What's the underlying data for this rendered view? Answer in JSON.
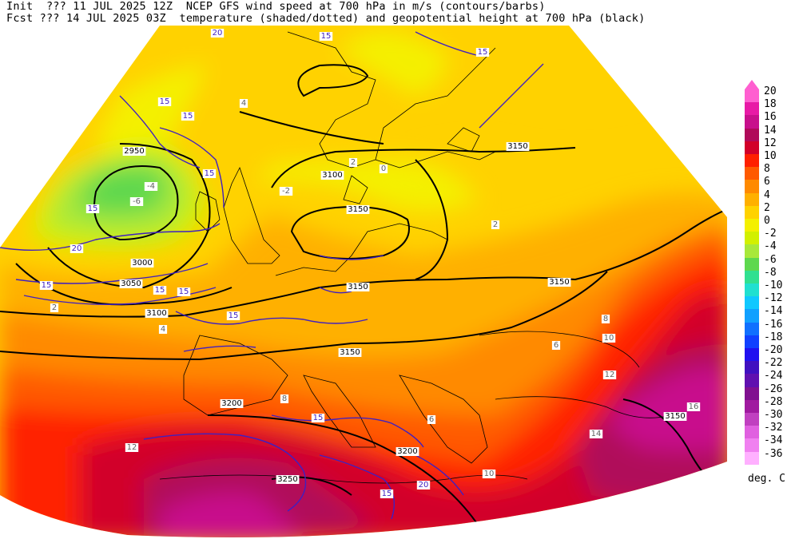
{
  "header": {
    "init_line": "Init  ??? 11 JUL 2025 12Z  NCEP GFS wind speed at 700 hPa in m/s (contours/barbs)",
    "fcst_line": "Fcst ??? 14 JUL 2025 03Z  temperature (shaded/dotted) and geopotential height at 700 hPa (black)"
  },
  "legend": {
    "units": "deg. C",
    "levels": [
      {
        "label": "20",
        "color": "#ff5fd0"
      },
      {
        "label": "18",
        "color": "#e81aa6"
      },
      {
        "label": "16",
        "color": "#c8108c"
      },
      {
        "label": "14",
        "color": "#b00a5a"
      },
      {
        "label": "12",
        "color": "#d2002a"
      },
      {
        "label": "10",
        "color": "#ff2000"
      },
      {
        "label": "8",
        "color": "#ff5a00"
      },
      {
        "label": "6",
        "color": "#ff8a00"
      },
      {
        "label": "4",
        "color": "#ffb000"
      },
      {
        "label": "2",
        "color": "#ffd200"
      },
      {
        "label": "0",
        "color": "#f4f000"
      },
      {
        "label": "-2",
        "color": "#d2f000"
      },
      {
        "label": "-4",
        "color": "#a8e83a"
      },
      {
        "label": "-6",
        "color": "#5ed84e"
      },
      {
        "label": "-8",
        "color": "#30e090"
      },
      {
        "label": "-10",
        "color": "#20e0d0"
      },
      {
        "label": "-12",
        "color": "#10c8ff"
      },
      {
        "label": "-14",
        "color": "#10a0ff"
      },
      {
        "label": "-16",
        "color": "#1070ff"
      },
      {
        "label": "-18",
        "color": "#1040ff"
      },
      {
        "label": "-20",
        "color": "#2010f0"
      },
      {
        "label": "-22",
        "color": "#4010c0"
      },
      {
        "label": "-24",
        "color": "#6010b0"
      },
      {
        "label": "-26",
        "color": "#801090"
      },
      {
        "label": "-28",
        "color": "#a01aa0"
      },
      {
        "label": "-30",
        "color": "#c040c0"
      },
      {
        "label": "-32",
        "color": "#e060e0"
      },
      {
        "label": "-34",
        "color": "#f080f0"
      },
      {
        "label": "-36",
        "color": "#ffb0ff"
      }
    ]
  },
  "map": {
    "height_contours": [
      "3150",
      "3150",
      "3100",
      "3150",
      "3150",
      "3150",
      "3100",
      "3050",
      "3000",
      "2950",
      "3200",
      "3250",
      "3200",
      "3150"
    ],
    "wind_contours": [
      "20",
      "15",
      "15",
      "15",
      "15",
      "15",
      "15",
      "15",
      "20",
      "15",
      "15",
      "15",
      "15",
      "20",
      "15"
    ],
    "temp_labels": [
      "-4",
      "-6",
      "0",
      "2",
      "2",
      "4",
      "6",
      "8",
      "10",
      "12",
      "14",
      "16",
      "6",
      "2",
      "-2",
      "4",
      "8",
      "10",
      "12"
    ],
    "temp_colors": {
      "t_neg6": "#5ed84e",
      "t_neg4": "#a8e83a",
      "t_neg2": "#d2f000",
      "t_0": "#f4f000",
      "t_2": "#ffd200",
      "t_4": "#ffb000",
      "t_6": "#ff8a00",
      "t_8": "#ff5a00",
      "t_10": "#ff2000",
      "t_12": "#d2002a",
      "t_14": "#b00a5a",
      "t_16": "#c8108c"
    },
    "height_color": "#000000",
    "wind_color": "#4020c0"
  }
}
